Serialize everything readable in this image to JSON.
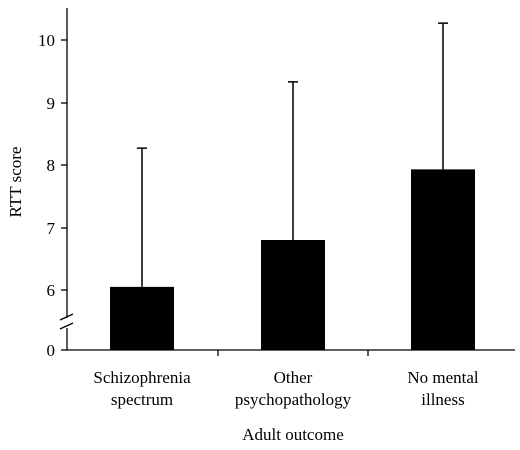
{
  "chart_data": {
    "type": "bar",
    "title": "",
    "xlabel": "Adult outcome",
    "ylabel": "RTT score",
    "categories": [
      [
        "Schizophrenia",
        "spectrum"
      ],
      [
        "Other",
        "psychopathology"
      ],
      [
        "No mental",
        "illness"
      ]
    ],
    "values": [
      6.05,
      6.8,
      7.93
    ],
    "error_upper": [
      8.27,
      9.33,
      10.27
    ],
    "yticks": [
      "0",
      "6",
      "7",
      "8",
      "9",
      "10"
    ],
    "ylim": [
      5.6,
      10.55
    ],
    "axis_break": true,
    "grid": false,
    "bar_color": "#000000"
  }
}
